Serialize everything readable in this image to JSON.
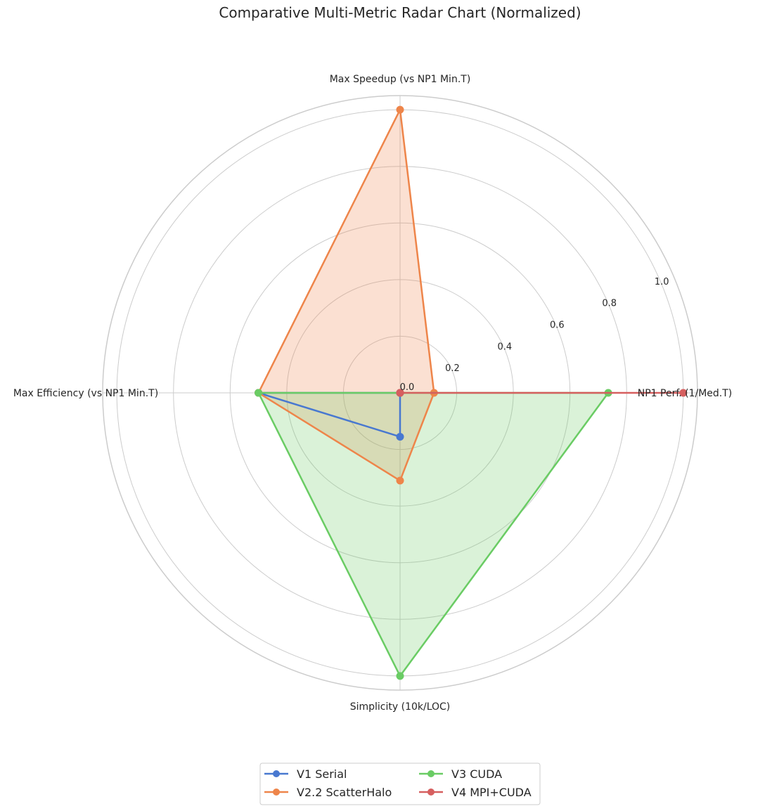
{
  "chart_data": {
    "type": "radar",
    "title": "Comparative Multi-Metric Radar Chart (Normalized)",
    "axes": [
      "NP1 Perf. (1/Med.T)",
      "Max Speedup (vs NP1 Min.T)",
      "Max Efficiency (vs NP1 Min.T)",
      "Simplicity (10k/LOC)"
    ],
    "rlim": [
      0,
      1.05
    ],
    "rticks": [
      0.0,
      0.2,
      0.4,
      0.6,
      0.8,
      1.0
    ],
    "rtick_labels": [
      "0.0",
      "0.2",
      "0.4",
      "0.6",
      "0.8",
      "1.0"
    ],
    "grid": true,
    "legend_position": "bottom-center",
    "legend_columns": 2,
    "series": [
      {
        "name": "V1 Serial",
        "color": "#4878d0",
        "fill": false,
        "values": [
          0.0,
          0.0,
          0.5,
          0.155
        ]
      },
      {
        "name": "V2.2 ScatterHalo",
        "color": "#ee854a",
        "fill": true,
        "values": [
          0.12,
          1.0,
          0.5,
          0.31
        ]
      },
      {
        "name": "V3 CUDA",
        "color": "#6acc64",
        "fill": true,
        "values": [
          0.735,
          0.0,
          0.5,
          1.0
        ]
      },
      {
        "name": "V4 MPI+CUDA",
        "color": "#d65f5f",
        "fill": false,
        "values": [
          1.0,
          0.0,
          0.0,
          0.0
        ]
      }
    ]
  }
}
